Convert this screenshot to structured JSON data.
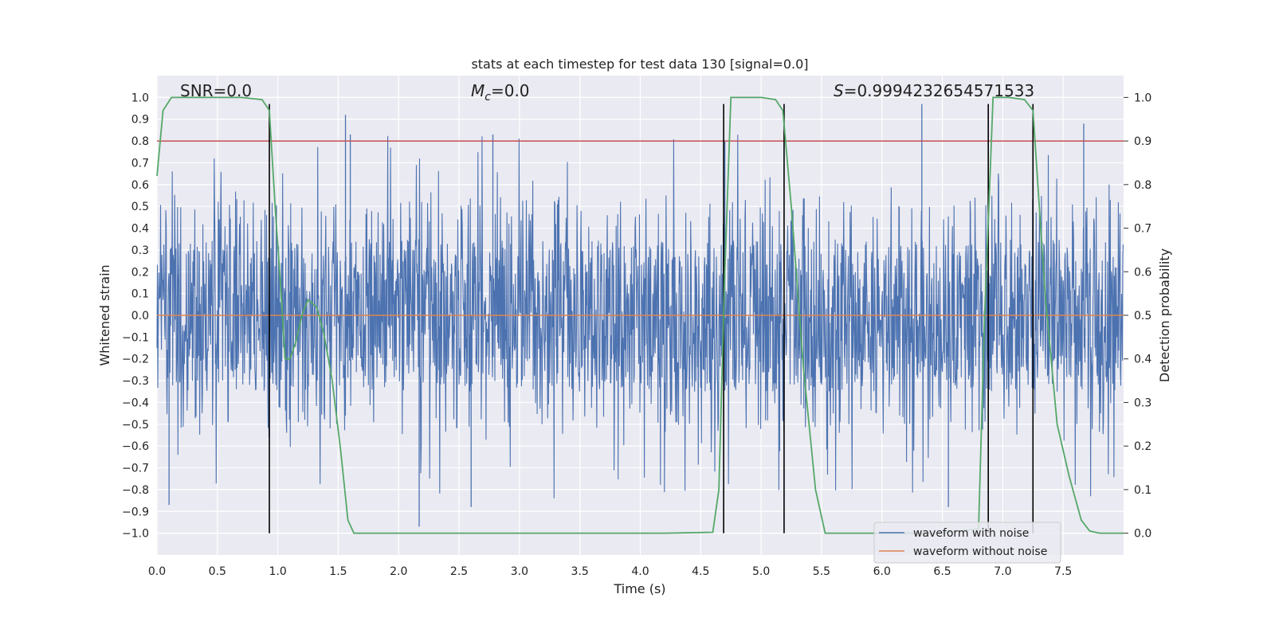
{
  "chart_data": {
    "type": "line",
    "title": "stats at each timestep for test data 130 [signal=0.0]",
    "xlabel": "Time (s)",
    "ylabel": "Whitened strain",
    "y2label": "Detection probability",
    "xlim": [
      0.0,
      8.0
    ],
    "ylim": [
      -1.1,
      1.1
    ],
    "y2lim": [
      -0.05,
      1.05
    ],
    "grid": true,
    "x_ticks": [
      0.0,
      0.5,
      1.0,
      1.5,
      2.0,
      2.5,
      3.0,
      3.5,
      4.0,
      4.5,
      5.0,
      5.5,
      6.0,
      6.5,
      7.0,
      7.5
    ],
    "x_tick_labels": [
      "0.0",
      "0.5",
      "1.0",
      "1.5",
      "2.0",
      "2.5",
      "3.0",
      "3.5",
      "4.0",
      "4.5",
      "5.0",
      "5.5",
      "6.0",
      "6.5",
      "7.0",
      "7.5"
    ],
    "y_ticks": [
      1.0,
      0.9,
      0.8,
      0.7,
      0.6,
      0.5,
      0.4,
      0.3,
      0.2,
      0.1,
      0.0,
      -0.1,
      -0.2,
      -0.3,
      -0.4,
      -0.5,
      -0.6,
      -0.7,
      -0.8,
      -0.9,
      -1.0
    ],
    "y_tick_labels": [
      "1.0",
      "0.9",
      "0.8",
      "0.7",
      "0.6",
      "0.5",
      "0.4",
      "0.3",
      "0.2",
      "0.1",
      "0.0",
      "−0.1",
      "−0.2",
      "−0.3",
      "−0.4",
      "−0.5",
      "−0.6",
      "−0.7",
      "−0.8",
      "−0.9",
      "−1.0"
    ],
    "y2_ticks": [
      1.0,
      0.9,
      0.8,
      0.7,
      0.6,
      0.5,
      0.4,
      0.3,
      0.2,
      0.1,
      0.0
    ],
    "y2_tick_labels": [
      "1.0",
      "0.9",
      "0.8",
      "0.7",
      "0.6",
      "0.5",
      "0.4",
      "0.3",
      "0.2",
      "0.1",
      "0.0"
    ],
    "annotations": {
      "snr": "SNR=0.0",
      "mc_symbol": "M",
      "mc_sub": "c",
      "mc_value": "=0.0",
      "s_symbol": "S",
      "s_value": "=0.9994232654571533"
    },
    "legend": {
      "position": "lower-right",
      "entries": [
        "waveform with noise",
        "waveform without noise"
      ]
    },
    "colors": {
      "noise": "#4c72b0",
      "clean": "#dd8452",
      "probability": "#55a868",
      "threshold": "#c44e52",
      "markers": "#000000",
      "background": "#eaeaf2",
      "grid": "#ffffff"
    },
    "noise_waveform": {
      "name": "waveform with noise",
      "axis": "left",
      "envelope": "dense noise, roughly ±0.35 core with spikes up to ±0.95",
      "notable_peaks": [
        {
          "x": 1.56,
          "y": 0.92
        },
        {
          "x": 2.78,
          "y": 0.83
        },
        {
          "x": 6.33,
          "y": 0.97
        },
        {
          "x": 7.67,
          "y": 0.88
        },
        {
          "x": 1.6,
          "y": 0.83
        },
        {
          "x": 4.7,
          "y": 0.8
        }
      ],
      "notable_troughs": [
        {
          "x": 0.1,
          "y": -0.87
        },
        {
          "x": 2.17,
          "y": -0.97
        },
        {
          "x": 2.6,
          "y": -0.88
        },
        {
          "x": 6.55,
          "y": -0.88
        },
        {
          "x": 6.88,
          "y": -0.94
        }
      ]
    },
    "clean_waveform": {
      "name": "waveform without noise",
      "axis": "left",
      "value": 0.0
    },
    "probability": {
      "name": "detection probability",
      "axis": "right",
      "x": [
        0.0,
        0.05,
        0.12,
        0.3,
        0.5,
        0.7,
        0.87,
        0.93,
        0.98,
        1.02,
        1.06,
        1.1,
        1.15,
        1.2,
        1.25,
        1.32,
        1.38,
        1.45,
        1.52,
        1.58,
        1.63,
        1.8,
        2.5,
        3.5,
        4.2,
        4.6,
        4.65,
        4.7,
        4.75,
        5.0,
        5.12,
        5.18,
        5.25,
        5.35,
        5.45,
        5.53,
        6.0,
        6.5,
        6.8,
        6.85,
        6.92,
        6.97,
        7.05,
        7.18,
        7.25,
        7.35,
        7.45,
        7.55,
        7.65,
        7.72,
        7.8,
        8.0
      ],
      "y": [
        0.82,
        0.97,
        1.0,
        1.0,
        1.0,
        1.0,
        0.995,
        0.97,
        0.74,
        0.58,
        0.4,
        0.4,
        0.44,
        0.5,
        0.535,
        0.52,
        0.46,
        0.35,
        0.19,
        0.03,
        0.0,
        0.0,
        0.0,
        0.0,
        0.0,
        0.002,
        0.1,
        0.6,
        1.0,
        1.0,
        0.995,
        0.97,
        0.75,
        0.38,
        0.1,
        0.0,
        0.0,
        0.0,
        0.01,
        0.5,
        1.0,
        1.0,
        1.0,
        0.995,
        0.97,
        0.55,
        0.25,
        0.13,
        0.03,
        0.005,
        0.0,
        0.0
      ]
    },
    "threshold": {
      "name": "detection threshold",
      "axis": "right",
      "value": 0.9
    },
    "event_markers": {
      "x": [
        0.93,
        4.69,
        5.19,
        6.88,
        7.25
      ],
      "y_range": [
        -1.0,
        0.97
      ]
    }
  }
}
